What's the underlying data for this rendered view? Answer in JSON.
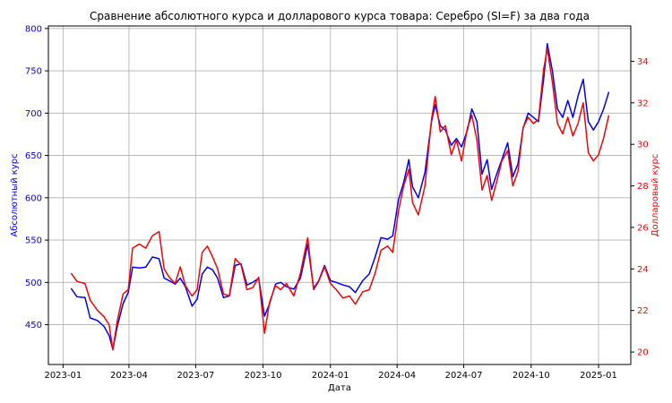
{
  "chart_data": {
    "type": "line",
    "title": "Сравнение абсолютного курса и долларового курса товара: Серебро (SI=F) за два года",
    "xlabel": "Дата",
    "ylabel_left": "Абсолютный курс",
    "ylabel_right": "Долларовый курс",
    "grid": true,
    "x_ticks": [
      "2023-01",
      "2023-04",
      "2023-07",
      "2023-10",
      "2024-01",
      "2024-04",
      "2024-07",
      "2024-10",
      "2025-01"
    ],
    "y_left": {
      "lim": [
        403,
        803
      ],
      "ticks": [
        450,
        500,
        550,
        600,
        650,
        700,
        750,
        800
      ],
      "color": "#0000ff"
    },
    "y_right": {
      "lim": [
        19.4,
        35.7
      ],
      "ticks": [
        20,
        22,
        24,
        26,
        28,
        30,
        32,
        34
      ],
      "color": "#ff0000"
    },
    "series": [
      {
        "axis": "left",
        "color": "#0000ff",
        "points": [
          [
            "2023-01-12",
            493
          ],
          [
            "2023-01-20",
            483
          ],
          [
            "2023-01-31",
            482
          ],
          [
            "2023-02-07",
            458
          ],
          [
            "2023-02-17",
            455
          ],
          [
            "2023-02-26",
            448
          ],
          [
            "2023-03-05",
            437
          ],
          [
            "2023-03-10",
            421
          ],
          [
            "2023-03-16",
            448
          ],
          [
            "2023-03-24",
            475
          ],
          [
            "2023-03-31",
            488
          ],
          [
            "2023-04-06",
            518
          ],
          [
            "2023-04-15",
            517
          ],
          [
            "2023-04-24",
            518
          ],
          [
            "2023-05-03",
            530
          ],
          [
            "2023-05-12",
            528
          ],
          [
            "2023-05-19",
            505
          ],
          [
            "2023-05-26",
            502
          ],
          [
            "2023-06-03",
            498
          ],
          [
            "2023-06-10",
            505
          ],
          [
            "2023-06-17",
            495
          ],
          [
            "2023-06-26",
            472
          ],
          [
            "2023-07-03",
            480
          ],
          [
            "2023-07-10",
            510
          ],
          [
            "2023-07-17",
            518
          ],
          [
            "2023-07-24",
            515
          ],
          [
            "2023-07-31",
            505
          ],
          [
            "2023-08-08",
            482
          ],
          [
            "2023-08-16",
            484
          ],
          [
            "2023-08-24",
            520
          ],
          [
            "2023-09-01",
            522
          ],
          [
            "2023-09-09",
            497
          ],
          [
            "2023-09-17",
            500
          ],
          [
            "2023-09-25",
            505
          ],
          [
            "2023-10-03",
            460
          ],
          [
            "2023-10-10",
            475
          ],
          [
            "2023-10-18",
            498
          ],
          [
            "2023-10-25",
            500
          ],
          [
            "2023-11-02",
            495
          ],
          [
            "2023-11-12",
            492
          ],
          [
            "2023-11-21",
            505
          ],
          [
            "2023-12-01",
            545
          ],
          [
            "2023-12-09",
            493
          ],
          [
            "2023-12-16",
            502
          ],
          [
            "2023-12-24",
            520
          ],
          [
            "2024-01-01",
            502
          ],
          [
            "2024-01-09",
            500
          ],
          [
            "2024-01-18",
            497
          ],
          [
            "2024-01-27",
            495
          ],
          [
            "2024-02-04",
            488
          ],
          [
            "2024-02-14",
            502
          ],
          [
            "2024-02-23",
            510
          ],
          [
            "2024-03-02",
            530
          ],
          [
            "2024-03-10",
            553
          ],
          [
            "2024-03-19",
            551
          ],
          [
            "2024-03-26",
            555
          ],
          [
            "2024-04-03",
            598
          ],
          [
            "2024-04-10",
            618
          ],
          [
            "2024-04-17",
            645
          ],
          [
            "2024-04-22",
            613
          ],
          [
            "2024-04-30",
            600
          ],
          [
            "2024-05-09",
            630
          ],
          [
            "2024-05-18",
            690
          ],
          [
            "2024-05-23",
            710
          ],
          [
            "2024-05-30",
            685
          ],
          [
            "2024-06-06",
            680
          ],
          [
            "2024-06-14",
            662
          ],
          [
            "2024-06-21",
            670
          ],
          [
            "2024-06-28",
            660
          ],
          [
            "2024-07-06",
            680
          ],
          [
            "2024-07-12",
            705
          ],
          [
            "2024-07-19",
            690
          ],
          [
            "2024-07-26",
            628
          ],
          [
            "2024-08-02",
            645
          ],
          [
            "2024-08-08",
            610
          ],
          [
            "2024-08-15",
            628
          ],
          [
            "2024-08-22",
            645
          ],
          [
            "2024-08-30",
            665
          ],
          [
            "2024-09-06",
            625
          ],
          [
            "2024-09-13",
            640
          ],
          [
            "2024-09-20",
            682
          ],
          [
            "2024-09-27",
            700
          ],
          [
            "2024-10-04",
            695
          ],
          [
            "2024-10-11",
            690
          ],
          [
            "2024-10-18",
            740
          ],
          [
            "2024-10-23",
            782
          ],
          [
            "2024-10-30",
            750
          ],
          [
            "2024-11-06",
            705
          ],
          [
            "2024-11-13",
            695
          ],
          [
            "2024-11-20",
            715
          ],
          [
            "2024-11-27",
            695
          ],
          [
            "2024-12-04",
            720
          ],
          [
            "2024-12-11",
            740
          ],
          [
            "2024-12-18",
            690
          ],
          [
            "2024-12-25",
            680
          ],
          [
            "2025-01-01",
            690
          ],
          [
            "2025-01-08",
            705
          ],
          [
            "2025-01-15",
            725
          ]
        ]
      },
      {
        "axis": "right",
        "color": "#ff0000",
        "points": [
          [
            "2023-01-12",
            23.8
          ],
          [
            "2023-01-20",
            23.4
          ],
          [
            "2023-01-31",
            23.3
          ],
          [
            "2023-02-07",
            22.5
          ],
          [
            "2023-02-17",
            22.0
          ],
          [
            "2023-02-26",
            21.7
          ],
          [
            "2023-03-05",
            21.3
          ],
          [
            "2023-03-10",
            20.1
          ],
          [
            "2023-03-16",
            21.5
          ],
          [
            "2023-03-24",
            22.8
          ],
          [
            "2023-03-31",
            23.0
          ],
          [
            "2023-04-06",
            25.0
          ],
          [
            "2023-04-15",
            25.2
          ],
          [
            "2023-04-24",
            25.0
          ],
          [
            "2023-05-03",
            25.6
          ],
          [
            "2023-05-12",
            25.8
          ],
          [
            "2023-05-19",
            24.0
          ],
          [
            "2023-05-26",
            23.6
          ],
          [
            "2023-06-03",
            23.3
          ],
          [
            "2023-06-10",
            24.1
          ],
          [
            "2023-06-17",
            23.2
          ],
          [
            "2023-06-26",
            22.7
          ],
          [
            "2023-07-03",
            23.0
          ],
          [
            "2023-07-10",
            24.8
          ],
          [
            "2023-07-17",
            25.1
          ],
          [
            "2023-07-24",
            24.6
          ],
          [
            "2023-07-31",
            24.0
          ],
          [
            "2023-08-08",
            22.8
          ],
          [
            "2023-08-16",
            22.7
          ],
          [
            "2023-08-24",
            24.5
          ],
          [
            "2023-09-01",
            24.2
          ],
          [
            "2023-09-09",
            23.0
          ],
          [
            "2023-09-17",
            23.1
          ],
          [
            "2023-09-25",
            23.6
          ],
          [
            "2023-10-03",
            20.9
          ],
          [
            "2023-10-10",
            22.4
          ],
          [
            "2023-10-18",
            23.2
          ],
          [
            "2023-10-25",
            23.0
          ],
          [
            "2023-11-02",
            23.3
          ],
          [
            "2023-11-12",
            22.7
          ],
          [
            "2023-11-21",
            23.8
          ],
          [
            "2023-12-01",
            25.5
          ],
          [
            "2023-12-09",
            23.0
          ],
          [
            "2023-12-16",
            23.4
          ],
          [
            "2023-12-24",
            24.1
          ],
          [
            "2024-01-01",
            23.3
          ],
          [
            "2024-01-09",
            23.0
          ],
          [
            "2024-01-18",
            22.6
          ],
          [
            "2024-01-27",
            22.7
          ],
          [
            "2024-02-04",
            22.3
          ],
          [
            "2024-02-14",
            22.9
          ],
          [
            "2024-02-23",
            23.0
          ],
          [
            "2024-03-02",
            23.8
          ],
          [
            "2024-03-10",
            24.9
          ],
          [
            "2024-03-19",
            25.1
          ],
          [
            "2024-03-26",
            24.8
          ],
          [
            "2024-04-03",
            26.8
          ],
          [
            "2024-04-10",
            28.0
          ],
          [
            "2024-04-17",
            28.8
          ],
          [
            "2024-04-22",
            27.2
          ],
          [
            "2024-04-30",
            26.6
          ],
          [
            "2024-05-09",
            28.0
          ],
          [
            "2024-05-18",
            31.2
          ],
          [
            "2024-05-23",
            32.3
          ],
          [
            "2024-05-30",
            30.6
          ],
          [
            "2024-06-06",
            30.9
          ],
          [
            "2024-06-14",
            29.5
          ],
          [
            "2024-06-21",
            30.2
          ],
          [
            "2024-06-28",
            29.2
          ],
          [
            "2024-07-06",
            30.8
          ],
          [
            "2024-07-12",
            31.4
          ],
          [
            "2024-07-19",
            30.2
          ],
          [
            "2024-07-26",
            27.8
          ],
          [
            "2024-08-02",
            28.5
          ],
          [
            "2024-08-08",
            27.3
          ],
          [
            "2024-08-15",
            28.2
          ],
          [
            "2024-08-22",
            29.2
          ],
          [
            "2024-08-30",
            29.7
          ],
          [
            "2024-09-06",
            28.0
          ],
          [
            "2024-09-13",
            28.7
          ],
          [
            "2024-09-20",
            30.8
          ],
          [
            "2024-09-27",
            31.3
          ],
          [
            "2024-10-04",
            31.0
          ],
          [
            "2024-10-11",
            31.2
          ],
          [
            "2024-10-18",
            33.6
          ],
          [
            "2024-10-23",
            34.6
          ],
          [
            "2024-10-30",
            33.0
          ],
          [
            "2024-11-06",
            31.0
          ],
          [
            "2024-11-13",
            30.5
          ],
          [
            "2024-11-20",
            31.3
          ],
          [
            "2024-11-27",
            30.4
          ],
          [
            "2024-12-04",
            31.0
          ],
          [
            "2024-12-11",
            32.0
          ],
          [
            "2024-12-18",
            29.6
          ],
          [
            "2024-12-25",
            29.2
          ],
          [
            "2025-01-01",
            29.5
          ],
          [
            "2025-01-08",
            30.3
          ],
          [
            "2025-01-15",
            31.4
          ]
        ]
      }
    ]
  }
}
